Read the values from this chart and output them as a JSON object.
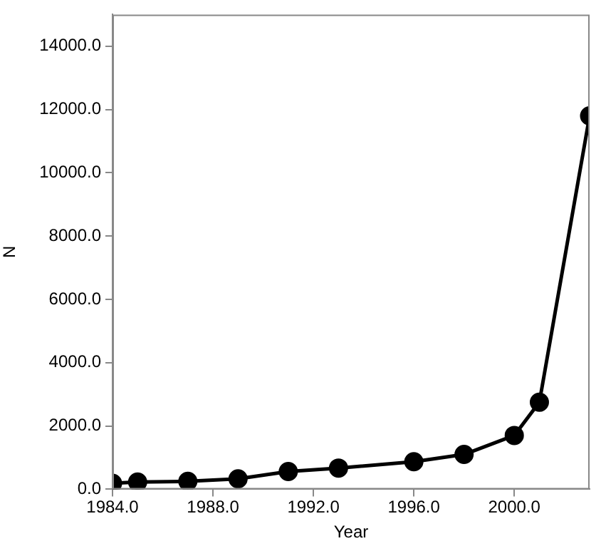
{
  "chart_data": {
    "type": "line",
    "xlabel": "Year",
    "ylabel": "N",
    "x": [
      1984,
      1985,
      1987,
      1989,
      1991,
      1993,
      1996,
      1998,
      2000,
      2001,
      2003
    ],
    "series": [
      {
        "color": "#000000",
        "values": [
          190,
          230,
          250,
          330,
          560,
          670,
          870,
          1100,
          1700,
          2750,
          11800
        ]
      }
    ],
    "xlim": [
      1984,
      2003
    ],
    "xticks": [
      {
        "value": 1984,
        "label": "1984.0"
      },
      {
        "value": 1988,
        "label": "1988.0"
      },
      {
        "value": 1992,
        "label": "1992.0"
      },
      {
        "value": 1996,
        "label": "1996.0"
      },
      {
        "value": 2000,
        "label": "2000.0"
      }
    ],
    "ylim": [
      0,
      15000
    ],
    "yticks": [
      {
        "value": 0,
        "label": "0.0"
      },
      {
        "value": 2000,
        "label": "2000.0"
      },
      {
        "value": 4000,
        "label": "4000.0"
      },
      {
        "value": 6000,
        "label": "6000.0"
      },
      {
        "value": 8000,
        "label": "8000.0"
      },
      {
        "value": 10000,
        "label": "10000.0"
      },
      {
        "value": 12000,
        "label": "12000.0"
      },
      {
        "value": 14000,
        "label": "14000.0"
      }
    ],
    "grid": false,
    "legend": false,
    "marker": "circle",
    "line_style": "solid"
  }
}
